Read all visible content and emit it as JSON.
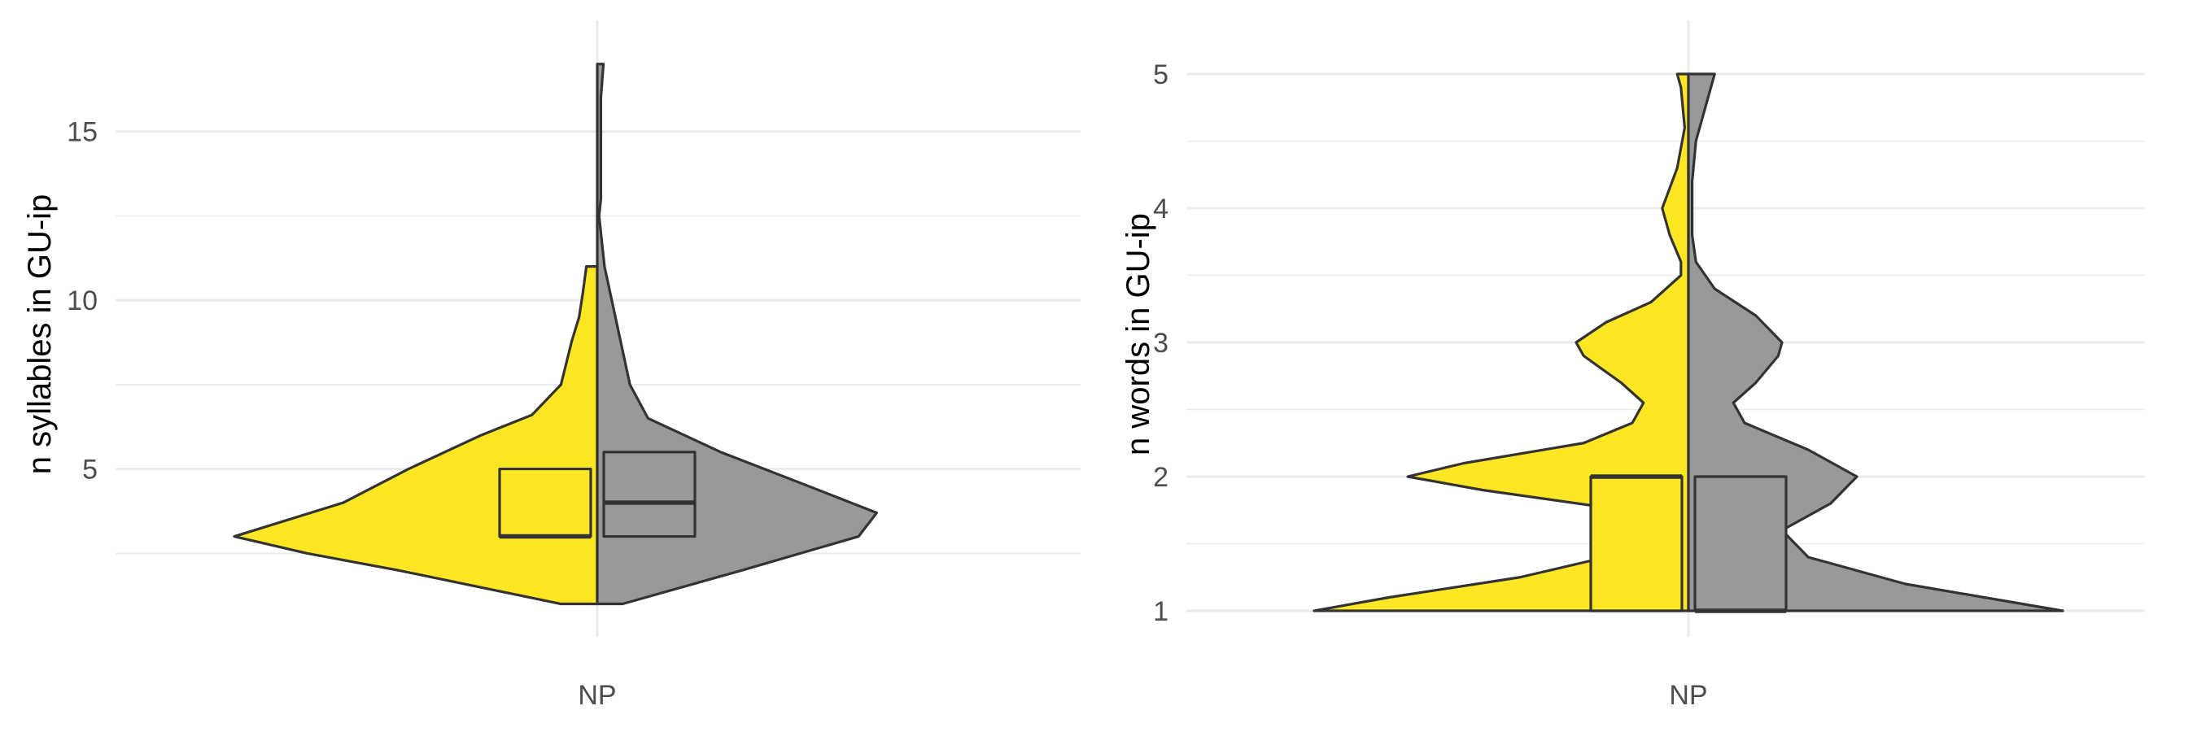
{
  "colors": {
    "group_a": "#fde725",
    "group_b": "#999999",
    "outline": "#333333",
    "grid": "#ebebeb"
  },
  "chart_data": [
    {
      "type": "split-violin",
      "ylabel": "n syllables in GU-ip",
      "categories": [
        "NP"
      ],
      "ylim": [
        0.0,
        17.5
      ],
      "yticks": [
        5,
        10,
        15
      ],
      "yminor": [
        2.5,
        7.5,
        12.5
      ],
      "grid": true,
      "groups": [
        {
          "color": "#fde725",
          "side": "left",
          "violin": [
            [
              1,
              0.1
            ],
            [
              2,
              0.55
            ],
            [
              2.5,
              0.8
            ],
            [
              3,
              1.0
            ],
            [
              3.5,
              0.85
            ],
            [
              4,
              0.7
            ],
            [
              5,
              0.52
            ],
            [
              6,
              0.32
            ],
            [
              6.6,
              0.18
            ],
            [
              7.5,
              0.1
            ],
            [
              8.8,
              0.07
            ],
            [
              9.5,
              0.05
            ],
            [
              10.2,
              0.04
            ],
            [
              11,
              0.03
            ]
          ],
          "box": {
            "q1": 3,
            "median": 3,
            "q3": 5
          }
        },
        {
          "color": "#999999",
          "side": "right",
          "violin": [
            [
              1,
              0.07
            ],
            [
              2,
              0.4
            ],
            [
              3,
              0.72
            ],
            [
              3.7,
              0.77
            ],
            [
              4.5,
              0.58
            ],
            [
              5.5,
              0.34
            ],
            [
              6.5,
              0.14
            ],
            [
              7.5,
              0.09
            ],
            [
              8.5,
              0.07
            ],
            [
              9.5,
              0.05
            ],
            [
              11,
              0.02
            ],
            [
              12.5,
              0.005
            ],
            [
              13,
              0.01
            ],
            [
              14,
              0.01
            ],
            [
              16,
              0.01
            ],
            [
              17,
              0.017
            ]
          ],
          "box": {
            "q1": 3,
            "median": 4,
            "q3": 5.5
          }
        }
      ]
    },
    {
      "type": "split-violin",
      "ylabel": "n words in GU-ip",
      "categories": [
        "NP"
      ],
      "ylim": [
        0.8,
        5.2
      ],
      "yticks": [
        1,
        2,
        3,
        4,
        5
      ],
      "yminor": [
        1.5,
        2.5,
        3.5,
        4.5
      ],
      "grid": true,
      "groups": [
        {
          "color": "#fde725",
          "side": "left",
          "violin": [
            [
              1,
              1.0
            ],
            [
              1.1,
              0.8
            ],
            [
              1.25,
              0.45
            ],
            [
              1.4,
              0.22
            ],
            [
              1.6,
              0.12
            ],
            [
              1.75,
              0.17
            ],
            [
              1.9,
              0.55
            ],
            [
              2.0,
              0.75
            ],
            [
              2.1,
              0.6
            ],
            [
              2.25,
              0.28
            ],
            [
              2.4,
              0.15
            ],
            [
              2.55,
              0.12
            ],
            [
              2.7,
              0.18
            ],
            [
              2.9,
              0.28
            ],
            [
              3.0,
              0.3
            ],
            [
              3.15,
              0.22
            ],
            [
              3.3,
              0.1
            ],
            [
              3.5,
              0.02
            ],
            [
              3.6,
              0.02
            ],
            [
              3.8,
              0.05
            ],
            [
              4.0,
              0.07
            ],
            [
              4.3,
              0.03
            ],
            [
              4.6,
              0.01
            ],
            [
              4.9,
              0.02
            ],
            [
              5.0,
              0.03
            ]
          ],
          "box": {
            "q1": 1,
            "median": 2,
            "q3": 2
          }
        },
        {
          "color": "#999999",
          "side": "right",
          "violin": [
            [
              1,
              1.0
            ],
            [
              1.2,
              0.58
            ],
            [
              1.4,
              0.32
            ],
            [
              1.6,
              0.25
            ],
            [
              1.8,
              0.38
            ],
            [
              2.0,
              0.45
            ],
            [
              2.2,
              0.32
            ],
            [
              2.4,
              0.15
            ],
            [
              2.55,
              0.12
            ],
            [
              2.7,
              0.18
            ],
            [
              2.9,
              0.24
            ],
            [
              3.0,
              0.25
            ],
            [
              3.2,
              0.18
            ],
            [
              3.4,
              0.07
            ],
            [
              3.6,
              0.02
            ],
            [
              3.8,
              0.01
            ],
            [
              4.2,
              0.01
            ],
            [
              4.5,
              0.02
            ],
            [
              4.8,
              0.05
            ],
            [
              5.0,
              0.07
            ]
          ],
          "box": {
            "q1": 1,
            "median": 1,
            "q3": 2
          }
        }
      ]
    }
  ]
}
